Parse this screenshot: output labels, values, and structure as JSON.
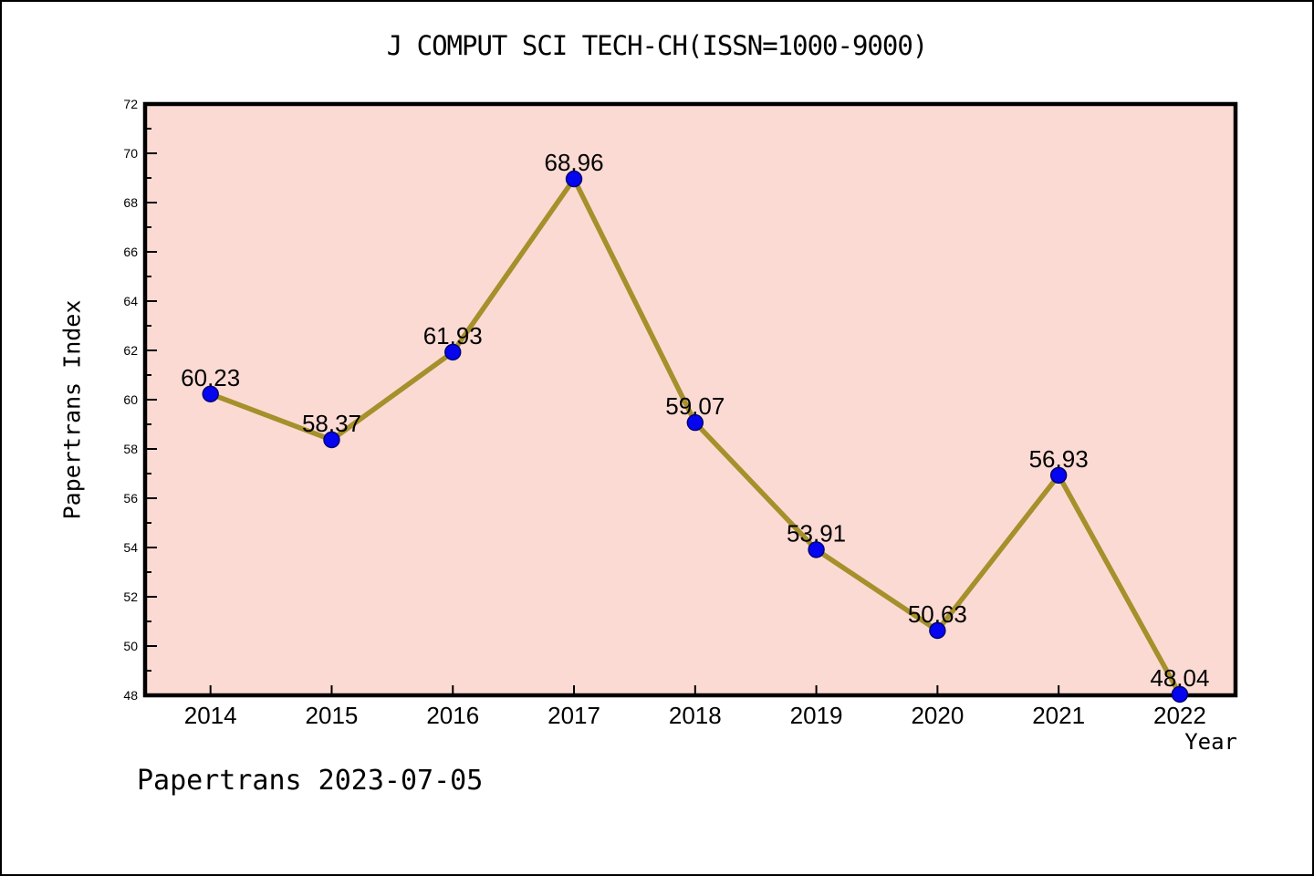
{
  "page": {
    "title": "J COMPUT SCI TECH-CH(ISSN=1000-9000)",
    "footer": "Papertrans 2023-07-05"
  },
  "chart_data": {
    "type": "line",
    "title": "J COMPUT SCI TECH-CH(ISSN=1000-9000)",
    "xlabel": "Year",
    "ylabel": "Papertrans Index",
    "x": [
      2014,
      2015,
      2016,
      2017,
      2018,
      2019,
      2020,
      2021,
      2022
    ],
    "values": [
      60.23,
      58.37,
      61.93,
      68.96,
      59.07,
      53.91,
      50.63,
      56.93,
      48.04
    ],
    "point_labels": [
      "60.23",
      "58.37",
      "61.93",
      "68.96",
      "59.07",
      "53.91",
      "50.63",
      "56.93",
      "48.04"
    ],
    "x_tick_labels": [
      "2014",
      "2015",
      "2016",
      "2017",
      "2018",
      "2019",
      "2020",
      "2021",
      "2022"
    ],
    "y_tick_labels": [
      "48",
      "50",
      "52",
      "54",
      "56",
      "58",
      "60",
      "62",
      "64",
      "66",
      "68",
      "70",
      "72"
    ],
    "ylim": [
      48,
      72
    ],
    "y_major_step": 2,
    "y_minor_step": 1,
    "xlim": [
      2013.46,
      2022.46
    ],
    "grid": false,
    "legend_position": "none",
    "annotation": "Papertrans 2023-07-05",
    "colors": {
      "plot_bg": "#fcdad4",
      "line": "#a5902b",
      "marker_fill": "#0505f0",
      "marker_edge": "#00006e",
      "axis": "#000000",
      "text": "#000000"
    }
  }
}
